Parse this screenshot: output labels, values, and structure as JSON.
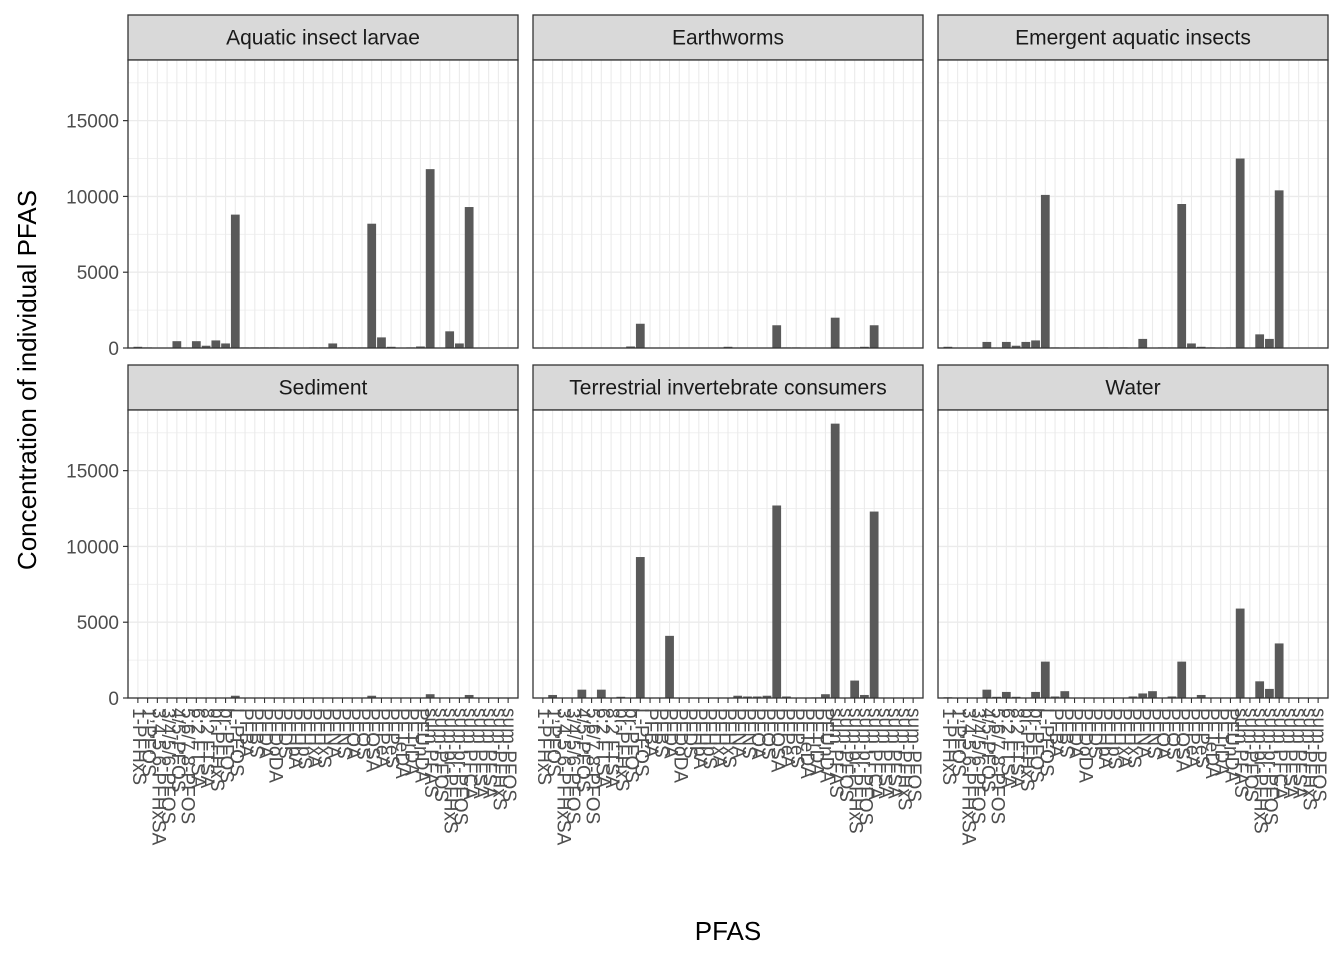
{
  "chart_data": {
    "type": "bar",
    "ylabel": "Concentration of individual PFAS",
    "xlabel": "PFAS",
    "ylim": [
      0,
      19000
    ],
    "yticks": [
      0,
      5000,
      10000,
      15000
    ],
    "grid": true,
    "legend": "none",
    "n_categories": 39,
    "tick_labels": [
      "1-PFHxS",
      "1-PFOS",
      "3,4,5,6-PFHxSA",
      "3/4/5/6-PFOS",
      "4/5-PFOS",
      "5,6/7,8-PFOS",
      "6:2 FTSA",
      "8:2 FTSA",
      "br-PFHxS",
      "br-PFOS",
      "L-PFOS",
      "PFBA",
      "PFBS",
      "PFDA",
      "PFDoDA",
      "PFDS",
      "PFHpA",
      "PFHpS",
      "PFHxA",
      "PFHxS",
      "PFNA",
      "PFNS",
      "PFOA",
      "PFOS",
      "PFOSA",
      "PFPeA",
      "PFPeS",
      "PFTeDA",
      "PFTrDA",
      "PFUnDA",
      "sum PFAS",
      "sum-PFOS",
      "sum-br-PFHxS",
      "sum-br-PFOS",
      "sum PFCA",
      "sum PFSA",
      "sum PFSA",
      "sum-PFHxS",
      "sum-PFOS"
    ],
    "panels": [
      {
        "title": "Aquatic insect larvae",
        "values": [
          80,
          40,
          0,
          0,
          450,
          0,
          450,
          150,
          500,
          300,
          8800,
          40,
          40,
          40,
          40,
          0,
          30,
          0,
          40,
          40,
          300,
          40,
          40,
          40,
          8200,
          700,
          80,
          0,
          40,
          100,
          11800,
          0,
          1100,
          300,
          9300,
          0,
          0,
          0,
          0
        ]
      },
      {
        "title": "Earthworms",
        "values": [
          0,
          0,
          0,
          0,
          0,
          0,
          0,
          0,
          0,
          100,
          1600,
          0,
          0,
          0,
          0,
          0,
          0,
          0,
          0,
          80,
          0,
          0,
          0,
          0,
          1500,
          40,
          40,
          0,
          0,
          0,
          2000,
          0,
          40,
          80,
          1500,
          0,
          0,
          0,
          0
        ]
      },
      {
        "title": "Emergent aquatic insects",
        "values": [
          80,
          0,
          0,
          0,
          400,
          0,
          400,
          150,
          400,
          500,
          10100,
          40,
          0,
          40,
          0,
          0,
          40,
          0,
          40,
          0,
          600,
          0,
          40,
          40,
          9500,
          300,
          80,
          40,
          0,
          40,
          12500,
          0,
          900,
          600,
          10400,
          0,
          0,
          0,
          0
        ]
      },
      {
        "title": "Sediment",
        "values": [
          0,
          0,
          0,
          0,
          0,
          0,
          0,
          0,
          0,
          0,
          150,
          0,
          0,
          0,
          0,
          0,
          0,
          0,
          0,
          0,
          0,
          0,
          0,
          0,
          150,
          0,
          0,
          0,
          0,
          0,
          250,
          0,
          0,
          0,
          200,
          0,
          0,
          0,
          0
        ]
      },
      {
        "title": "Terrestrial invertebrate consumers",
        "values": [
          0,
          200,
          0,
          0,
          550,
          0,
          550,
          0,
          80,
          0,
          9300,
          0,
          0,
          4100,
          0,
          0,
          0,
          0,
          0,
          0,
          150,
          100,
          100,
          150,
          12700,
          100,
          0,
          0,
          40,
          250,
          18100,
          0,
          1150,
          200,
          12300,
          0,
          0,
          0,
          0
        ]
      },
      {
        "title": "Water",
        "values": [
          50,
          0,
          0,
          0,
          550,
          80,
          400,
          80,
          0,
          400,
          2400,
          100,
          450,
          0,
          0,
          0,
          0,
          0,
          0,
          100,
          300,
          450,
          0,
          100,
          2400,
          0,
          200,
          0,
          0,
          0,
          5900,
          0,
          1100,
          600,
          3600,
          0,
          0,
          0,
          0
        ]
      }
    ]
  }
}
